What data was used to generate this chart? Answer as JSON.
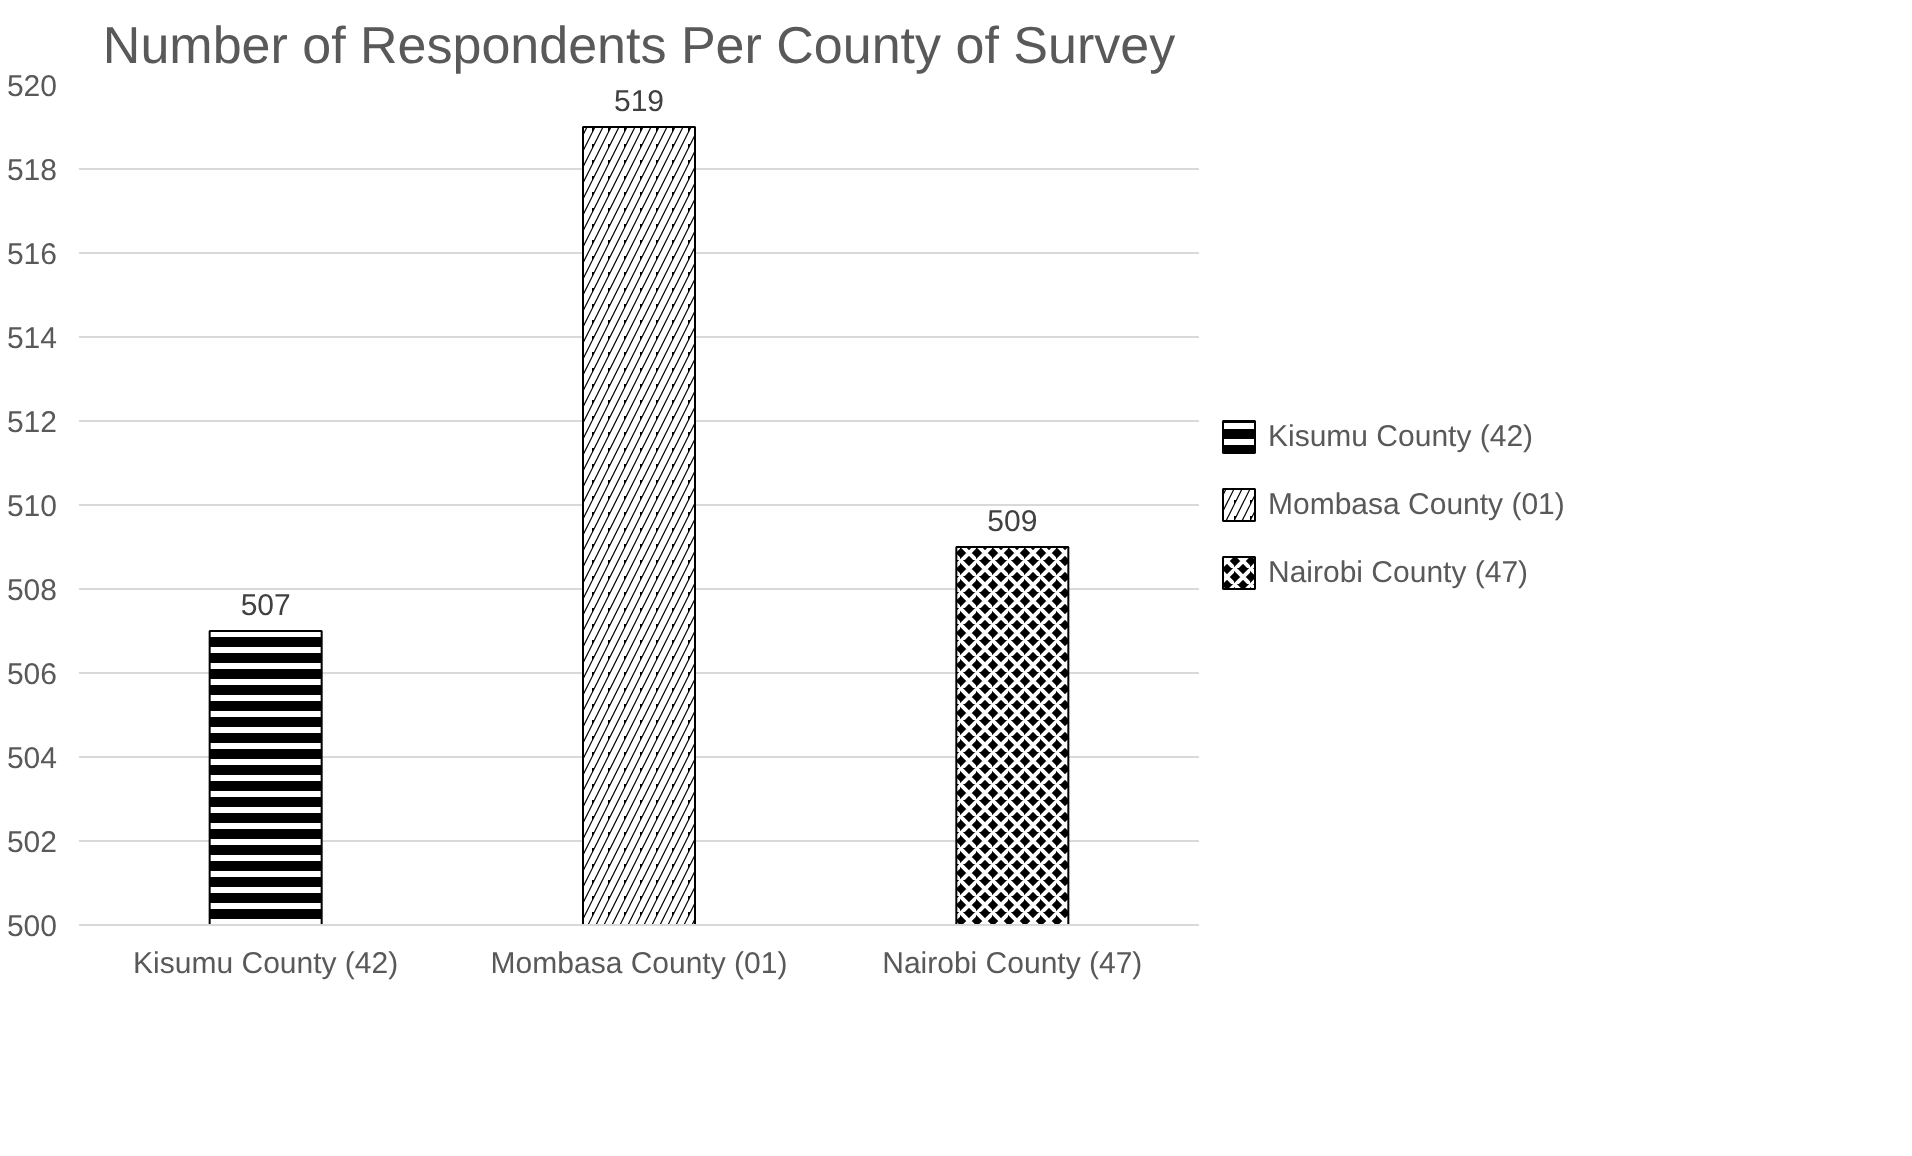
{
  "chart_data": {
    "type": "bar",
    "title": "Number of Respondents Per County of Survey",
    "categories": [
      "Kisumu County (42)",
      "Mombasa County (01)",
      "Nairobi County (47)"
    ],
    "series": [
      {
        "name": "Kisumu County (42)",
        "color": "#000000",
        "values": [
          507,
          null,
          null
        ]
      },
      {
        "name": "Mombasa County (01)",
        "color": "#000000",
        "values": [
          null,
          519,
          null
        ]
      },
      {
        "name": "Nairobi County (47)",
        "color": "#000000",
        "values": [
          null,
          null,
          509
        ]
      }
    ],
    "ylim": [
      500,
      520
    ],
    "yticks": [
      500,
      502,
      504,
      506,
      508,
      510,
      512,
      514,
      516,
      518,
      520
    ],
    "grid": "y",
    "legend": "right",
    "data_labels": true
  }
}
